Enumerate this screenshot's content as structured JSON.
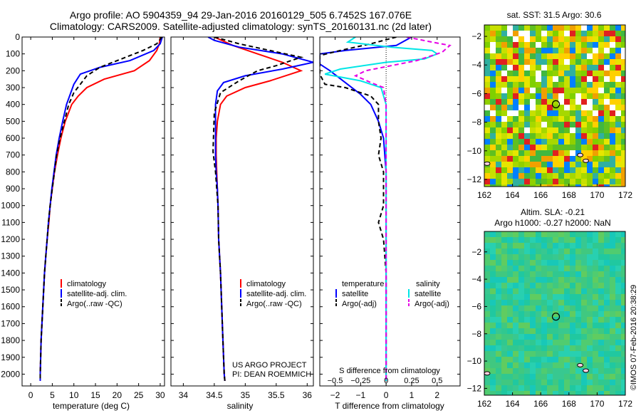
{
  "header": {
    "title_line1": "Argo profile: AO 5904359_94 29-Jan-2016 20160129_505 6.7452S 167.076E",
    "title_line2": "Climatology: CARS2009. Satellite-adjusted climatology: synTS_20160131.nc (2d later)"
  },
  "side_label": "©IMOS 07-Feb-2016 20:38:29",
  "credits": [
    "US ARGO PROJECT",
    "PI: DEAN ROEMMICH"
  ],
  "colors": {
    "climatology": "#ff0000",
    "satellite": "#0000ff",
    "argo": "#000000",
    "sat_salinity": "#00e6e6",
    "argo_salinity_diff": "#e600e6"
  },
  "chart_data": [
    {
      "type": "line",
      "panel": "temperature",
      "xlabel": "temperature (deg C)",
      "xlim": [
        -2,
        31
      ],
      "xticks": [
        0,
        5,
        10,
        15,
        20,
        25,
        30
      ],
      "ylim": [
        2070,
        0
      ],
      "yticks": [
        0,
        100,
        200,
        300,
        400,
        500,
        600,
        700,
        800,
        900,
        1000,
        1100,
        1200,
        1300,
        1400,
        1500,
        1600,
        1700,
        1800,
        1900,
        2000
      ],
      "legend": [
        "climatology",
        "satellite-adj. clim.",
        "Argo(..raw -QC)"
      ],
      "series": [
        {
          "name": "climatology",
          "color": "#ff0000",
          "dash": "",
          "points": [
            [
              30.0,
              0
            ],
            [
              29.8,
              40
            ],
            [
              29.2,
              80
            ],
            [
              27.5,
              140
            ],
            [
              24.0,
              200
            ],
            [
              17.0,
              250
            ],
            [
              13.0,
              300
            ],
            [
              11.0,
              350
            ],
            [
              9.5,
              400
            ],
            [
              8.0,
              500
            ],
            [
              7.0,
              600
            ],
            [
              6.2,
              700
            ],
            [
              5.5,
              800
            ],
            [
              5.0,
              900
            ],
            [
              4.5,
              1000
            ],
            [
              4.2,
              1100
            ],
            [
              3.8,
              1200
            ],
            [
              3.5,
              1300
            ],
            [
              3.2,
              1400
            ],
            [
              3.0,
              1500
            ],
            [
              2.8,
              1600
            ],
            [
              2.6,
              1700
            ],
            [
              2.4,
              1800
            ],
            [
              2.3,
              1900
            ],
            [
              2.2,
              2000
            ],
            [
              2.2,
              2040
            ]
          ]
        },
        {
          "name": "satellite-adj. clim.",
          "color": "#0000ff",
          "dash": "",
          "points": [
            [
              30.5,
              0
            ],
            [
              30.0,
              40
            ],
            [
              28.5,
              80
            ],
            [
              23.0,
              140
            ],
            [
              16.0,
              180
            ],
            [
              11.5,
              220
            ],
            [
              10.0,
              280
            ],
            [
              9.0,
              350
            ],
            [
              8.3,
              400
            ],
            [
              7.4,
              500
            ],
            [
              6.6,
              600
            ],
            [
              5.9,
              700
            ],
            [
              5.4,
              800
            ],
            [
              4.9,
              900
            ],
            [
              4.5,
              1000
            ],
            [
              4.1,
              1100
            ],
            [
              3.8,
              1200
            ],
            [
              3.5,
              1300
            ],
            [
              3.2,
              1400
            ],
            [
              3.0,
              1500
            ],
            [
              2.8,
              1600
            ],
            [
              2.6,
              1700
            ],
            [
              2.4,
              1800
            ],
            [
              2.3,
              1900
            ],
            [
              2.2,
              2000
            ],
            [
              2.2,
              2040
            ]
          ]
        },
        {
          "name": "Argo(..raw -QC)",
          "color": "#000000",
          "dash": "6,4",
          "points": [
            [
              30.4,
              0
            ],
            [
              29.2,
              40
            ],
            [
              26.0,
              80
            ],
            [
              21.0,
              130
            ],
            [
              16.0,
              180
            ],
            [
              13.0,
              230
            ],
            [
              11.5,
              280
            ],
            [
              10.0,
              330
            ],
            [
              8.8,
              400
            ],
            [
              7.8,
              500
            ],
            [
              6.8,
              600
            ],
            [
              6.0,
              700
            ],
            [
              5.5,
              800
            ],
            [
              5.0,
              900
            ],
            [
              4.5,
              1000
            ],
            [
              4.1,
              1100
            ],
            [
              3.8,
              1200
            ],
            [
              3.5,
              1300
            ],
            [
              3.2,
              1400
            ],
            [
              3.0,
              1500
            ],
            [
              2.8,
              1600
            ],
            [
              2.6,
              1700
            ],
            [
              2.4,
              1800
            ],
            [
              2.3,
              1900
            ],
            [
              2.2,
              2000
            ],
            [
              2.2,
              2040
            ]
          ]
        }
      ]
    },
    {
      "type": "line",
      "panel": "salinity",
      "xlabel": "salinity",
      "xlim": [
        33.8,
        36.1
      ],
      "xticks": [
        34,
        34.5,
        35,
        35.5,
        36
      ],
      "xticklabels": [
        "34",
        "34.5",
        "35",
        "35.5",
        "36"
      ],
      "ylim": [
        2070,
        0
      ],
      "legend": [
        "climatology",
        "satellite-adj. clim.",
        "Argo(..raw -QC)"
      ],
      "series": [
        {
          "name": "climatology",
          "color": "#ff0000",
          "dash": "",
          "points": [
            [
              34.5,
              0
            ],
            [
              34.8,
              50
            ],
            [
              35.2,
              100
            ],
            [
              35.6,
              150
            ],
            [
              35.9,
              200
            ],
            [
              35.4,
              260
            ],
            [
              35.0,
              300
            ],
            [
              34.7,
              350
            ],
            [
              34.6,
              400
            ],
            [
              34.55,
              500
            ],
            [
              34.53,
              600
            ],
            [
              34.53,
              700
            ],
            [
              34.54,
              800
            ],
            [
              34.55,
              900
            ],
            [
              34.56,
              1000
            ],
            [
              34.57,
              1200
            ],
            [
              34.6,
              1400
            ],
            [
              34.62,
              1600
            ],
            [
              34.64,
              1800
            ],
            [
              34.66,
              2000
            ],
            [
              34.67,
              2040
            ]
          ]
        },
        {
          "name": "satellite-adj. clim.",
          "color": "#0000ff",
          "dash": "",
          "points": [
            [
              34.4,
              0
            ],
            [
              34.5,
              20
            ],
            [
              34.9,
              60
            ],
            [
              35.6,
              100
            ],
            [
              36.1,
              150
            ],
            [
              35.6,
              190
            ],
            [
              35.0,
              230
            ],
            [
              34.65,
              270
            ],
            [
              34.55,
              320
            ],
            [
              34.52,
              400
            ],
            [
              34.52,
              500
            ],
            [
              34.52,
              600
            ],
            [
              34.52,
              700
            ],
            [
              34.53,
              800
            ],
            [
              34.55,
              900
            ],
            [
              34.56,
              1000
            ],
            [
              34.57,
              1200
            ],
            [
              34.6,
              1400
            ],
            [
              34.62,
              1600
            ],
            [
              34.64,
              1800
            ],
            [
              34.66,
              2000
            ],
            [
              34.67,
              2040
            ]
          ]
        },
        {
          "name": "Argo(..raw -QC)",
          "color": "#000000",
          "dash": "6,4",
          "points": [
            [
              34.5,
              0
            ],
            [
              34.9,
              40
            ],
            [
              35.4,
              80
            ],
            [
              35.9,
              120
            ],
            [
              35.5,
              170
            ],
            [
              35.2,
              200
            ],
            [
              34.9,
              260
            ],
            [
              34.6,
              330
            ],
            [
              34.5,
              450
            ],
            [
              34.49,
              560
            ],
            [
              34.48,
              680
            ],
            [
              34.52,
              800
            ],
            [
              34.54,
              900
            ],
            [
              34.56,
              1000
            ],
            [
              34.57,
              1200
            ],
            [
              34.6,
              1400
            ],
            [
              34.62,
              1600
            ],
            [
              34.64,
              1800
            ],
            [
              34.66,
              2000
            ],
            [
              34.67,
              2040
            ]
          ]
        }
      ]
    },
    {
      "type": "line",
      "panel": "difference",
      "xlabel": "T difference from climatology",
      "xlim": [
        -2.6,
        2.9
      ],
      "xticks": [
        -2,
        -1,
        0,
        1,
        2
      ],
      "top_xlabel": "S difference from climatology",
      "top_xticklabels": [
        "-0.5",
        "-0.25",
        "0",
        "0.25",
        "0.5"
      ],
      "ylim": [
        2070,
        0
      ],
      "legend_headers": [
        "temperature",
        "salinity"
      ],
      "legend": [
        "satellite",
        "Argo(-adj)",
        "satellite",
        "Argo(-adj)"
      ],
      "series": [
        {
          "name": "satellite",
          "group": "temperature",
          "color": "#0000ff",
          "dash": "",
          "points": [
            [
              1.0,
              0
            ],
            [
              0.4,
              50
            ],
            [
              -1.6,
              80
            ],
            [
              -2.6,
              100
            ],
            [
              -2.6,
              160
            ],
            [
              -2.2,
              200
            ],
            [
              -1.6,
              270
            ],
            [
              -1.0,
              340
            ],
            [
              -0.6,
              400
            ],
            [
              -0.3,
              500
            ],
            [
              -0.1,
              600
            ],
            [
              0,
              800
            ],
            [
              0,
              1000
            ],
            [
              0,
              1500
            ],
            [
              0,
              2040
            ]
          ]
        },
        {
          "name": "Argo(-adj)",
          "group": "temperature",
          "color": "#000000",
          "dash": "6,4",
          "points": [
            [
              0.4,
              0
            ],
            [
              -0.6,
              40
            ],
            [
              -1.8,
              80
            ],
            [
              -2.6,
              110
            ],
            [
              -2.6,
              220
            ],
            [
              -2.4,
              280
            ],
            [
              -1.6,
              300
            ],
            [
              -0.6,
              350
            ],
            [
              -0.3,
              400
            ],
            [
              -0.3,
              500
            ],
            [
              -0.2,
              600
            ],
            [
              -0.3,
              700
            ],
            [
              -0.1,
              800
            ],
            [
              -0.1,
              1000
            ],
            [
              -0.3,
              1100
            ],
            [
              -0.1,
              1200
            ],
            [
              0,
              1400
            ],
            [
              0,
              1600
            ],
            [
              0,
              2040
            ]
          ]
        },
        {
          "name": "satellite",
          "group": "salinity",
          "color": "#00e6e6",
          "dash": "",
          "points": [
            [
              -1.2,
              0
            ],
            [
              -1.5,
              30
            ],
            [
              0.2,
              60
            ],
            [
              1.8,
              80
            ],
            [
              2.0,
              100
            ],
            [
              1.5,
              130
            ],
            [
              0.0,
              150
            ],
            [
              -1.8,
              190
            ],
            [
              -2.4,
              220
            ],
            [
              -1.0,
              260
            ],
            [
              -0.2,
              300
            ],
            [
              0,
              400
            ],
            [
              0,
              600
            ],
            [
              0,
              1000
            ],
            [
              0,
              2040
            ]
          ]
        },
        {
          "name": "Argo(-adj)",
          "group": "salinity",
          "color": "#e600e6",
          "dash": "6,4",
          "points": [
            [
              0.8,
              0
            ],
            [
              1.8,
              30
            ],
            [
              2.5,
              50
            ],
            [
              2.2,
              90
            ],
            [
              1.2,
              140
            ],
            [
              0.2,
              170
            ],
            [
              -0.8,
              200
            ],
            [
              -1.2,
              230
            ],
            [
              -0.6,
              270
            ],
            [
              -0.1,
              300
            ],
            [
              0,
              400
            ],
            [
              0,
              600
            ],
            [
              0,
              1000
            ],
            [
              0,
              2040
            ]
          ]
        }
      ]
    },
    {
      "type": "heatmap",
      "panel": "sst_map",
      "title": "sat. SST: 31.5 Argo: 30.6",
      "xlim": [
        162,
        172
      ],
      "ylim": [
        -12.5,
        -1.2
      ],
      "xticks": [
        162,
        164,
        166,
        168,
        170,
        172
      ],
      "yticks": [
        -2,
        -4,
        -6,
        -8,
        -10,
        -12
      ],
      "marker": {
        "x": 167.076,
        "y": -6.7452
      }
    },
    {
      "type": "heatmap",
      "panel": "sla_map",
      "title_line1": "Altim. SLA: -0.21",
      "title_line2": "Argo h1000: -0.27 h2000: NaN",
      "xlim": [
        162,
        172
      ],
      "ylim": [
        -12.5,
        -0.5
      ],
      "xticks": [
        162,
        164,
        166,
        168,
        170,
        172
      ],
      "yticks": [
        -2,
        -4,
        -6,
        -8,
        -10,
        -12
      ],
      "marker": {
        "x": 167.076,
        "y": -6.7452
      }
    }
  ]
}
